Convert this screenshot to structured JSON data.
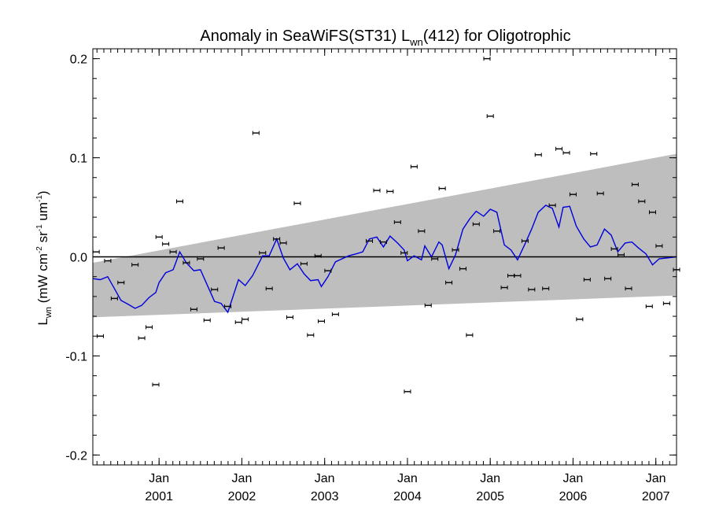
{
  "chart_data": {
    "type": "scatter",
    "title": {
      "main": "Anomaly in SeaWiFS(ST31) L",
      "subscript": "wn",
      "suffix": "(412) for Oligotrophic"
    },
    "ylabel": {
      "main": "L",
      "sub": "wn",
      "units_prefix": " (mW cm",
      "exp1": "-2",
      "mid1": " sr",
      "exp2": "-1",
      "mid2": " um",
      "exp3": "-1",
      "close": ")"
    },
    "xlabel": "",
    "xlim": [
      2000.2,
      2007.25
    ],
    "ylim": [
      -0.21,
      0.21
    ],
    "yticks": [
      {
        "value": -0.2,
        "label": "-0.2"
      },
      {
        "value": -0.1,
        "label": "-0.1"
      },
      {
        "value": 0.0,
        "label": "0.0"
      },
      {
        "value": 0.1,
        "label": "0.1"
      },
      {
        "value": 0.2,
        "label": "0.2"
      }
    ],
    "xticks": [
      {
        "value": 2001.0,
        "month": "Jan",
        "year": "2001"
      },
      {
        "value": 2002.0,
        "month": "Jan",
        "year": "2002"
      },
      {
        "value": 2003.0,
        "month": "Jan",
        "year": "2003"
      },
      {
        "value": 2004.0,
        "month": "Jan",
        "year": "2004"
      },
      {
        "value": 2005.0,
        "month": "Jan",
        "year": "2005"
      },
      {
        "value": 2006.0,
        "month": "Jan",
        "year": "2006"
      },
      {
        "value": 2007.0,
        "month": "Jan",
        "year": "2007"
      }
    ],
    "zero_line": 0.0,
    "envelope": {
      "color": "#bebebe",
      "upper": [
        [
          2000.2,
          -0.006
        ],
        [
          2007.25,
          0.104
        ]
      ],
      "lower": [
        [
          2000.2,
          -0.061
        ],
        [
          2007.25,
          -0.039
        ]
      ]
    },
    "series": [
      {
        "kind": "points",
        "color": "#000000",
        "points": [
          [
            2000.24,
            0.005
          ],
          [
            2000.29,
            -0.08
          ],
          [
            2000.38,
            -0.004
          ],
          [
            2000.46,
            -0.042
          ],
          [
            2000.54,
            -0.026
          ],
          [
            2000.71,
            -0.008
          ],
          [
            2000.79,
            -0.082
          ],
          [
            2000.88,
            -0.071
          ],
          [
            2000.96,
            -0.129
          ],
          [
            2001.0,
            0.02
          ],
          [
            2001.08,
            0.013
          ],
          [
            2001.17,
            0.005
          ],
          [
            2001.25,
            0.056
          ],
          [
            2001.33,
            -0.006
          ],
          [
            2001.42,
            -0.053
          ],
          [
            2001.5,
            -0.002
          ],
          [
            2001.58,
            -0.064
          ],
          [
            2001.67,
            -0.033
          ],
          [
            2001.75,
            0.009
          ],
          [
            2001.83,
            -0.05
          ],
          [
            2001.96,
            -0.066
          ],
          [
            2002.04,
            -0.063
          ],
          [
            2002.17,
            0.125
          ],
          [
            2002.25,
            0.004
          ],
          [
            2002.33,
            -0.032
          ],
          [
            2002.42,
            0.018
          ],
          [
            2002.5,
            0.014
          ],
          [
            2002.58,
            -0.061
          ],
          [
            2002.67,
            0.054
          ],
          [
            2002.75,
            -0.007
          ],
          [
            2002.83,
            -0.079
          ],
          [
            2002.92,
            0.001
          ],
          [
            2002.96,
            -0.065
          ],
          [
            2003.04,
            -0.014
          ],
          [
            2003.13,
            -0.058
          ],
          [
            2003.54,
            0.016
          ],
          [
            2003.63,
            0.067
          ],
          [
            2003.71,
            0.015
          ],
          [
            2003.79,
            0.066
          ],
          [
            2003.88,
            0.035
          ],
          [
            2003.96,
            0.004
          ],
          [
            2004.0,
            -0.136
          ],
          [
            2004.08,
            0.091
          ],
          [
            2004.17,
            0.026
          ],
          [
            2004.25,
            -0.049
          ],
          [
            2004.33,
            -0.002
          ],
          [
            2004.42,
            0.069
          ],
          [
            2004.5,
            -0.026
          ],
          [
            2004.58,
            0.007
          ],
          [
            2004.67,
            -0.012
          ],
          [
            2004.75,
            -0.079
          ],
          [
            2004.83,
            0.033
          ],
          [
            2004.96,
            0.2
          ],
          [
            2005.0,
            0.142
          ],
          [
            2005.08,
            0.026
          ],
          [
            2005.17,
            -0.031
          ],
          [
            2005.25,
            -0.019
          ],
          [
            2005.33,
            -0.019
          ],
          [
            2005.42,
            0.016
          ],
          [
            2005.5,
            -0.033
          ],
          [
            2005.58,
            0.103
          ],
          [
            2005.67,
            -0.032
          ],
          [
            2005.75,
            0.052
          ],
          [
            2005.83,
            0.109
          ],
          [
            2005.92,
            0.105
          ],
          [
            2006.0,
            0.063
          ],
          [
            2006.08,
            -0.063
          ],
          [
            2006.17,
            -0.023
          ],
          [
            2006.25,
            0.104
          ],
          [
            2006.33,
            0.064
          ],
          [
            2006.42,
            -0.022
          ],
          [
            2006.5,
            0.008
          ],
          [
            2006.58,
            0.002
          ],
          [
            2006.67,
            -0.032
          ],
          [
            2006.75,
            0.073
          ],
          [
            2006.83,
            0.056
          ],
          [
            2006.92,
            -0.05
          ],
          [
            2006.96,
            0.045
          ],
          [
            2007.04,
            0.011
          ],
          [
            2007.13,
            -0.047
          ],
          [
            2007.25,
            -0.013
          ]
        ]
      },
      {
        "kind": "line",
        "color": "#0000dd",
        "points": [
          [
            2000.2,
            -0.022
          ],
          [
            2000.29,
            -0.023
          ],
          [
            2000.38,
            -0.02
          ],
          [
            2000.46,
            -0.032
          ],
          [
            2000.54,
            -0.044
          ],
          [
            2000.63,
            -0.048
          ],
          [
            2000.71,
            -0.052
          ],
          [
            2000.79,
            -0.049
          ],
          [
            2000.88,
            -0.041
          ],
          [
            2000.96,
            -0.036
          ],
          [
            2001.0,
            -0.026
          ],
          [
            2001.08,
            -0.016
          ],
          [
            2001.17,
            -0.013
          ],
          [
            2001.25,
            0.005
          ],
          [
            2001.33,
            -0.006
          ],
          [
            2001.42,
            -0.014
          ],
          [
            2001.5,
            -0.013
          ],
          [
            2001.58,
            -0.028
          ],
          [
            2001.67,
            -0.045
          ],
          [
            2001.75,
            -0.047
          ],
          [
            2001.83,
            -0.056
          ],
          [
            2001.96,
            -0.023
          ],
          [
            2002.04,
            -0.029
          ],
          [
            2002.13,
            -0.019
          ],
          [
            2002.25,
            0.001
          ],
          [
            2002.33,
            0.001
          ],
          [
            2002.42,
            0.018
          ],
          [
            2002.5,
            -0.001
          ],
          [
            2002.58,
            -0.013
          ],
          [
            2002.67,
            -0.007
          ],
          [
            2002.75,
            -0.017
          ],
          [
            2002.83,
            -0.024
          ],
          [
            2002.92,
            -0.023
          ],
          [
            2002.96,
            -0.03
          ],
          [
            2003.04,
            -0.02
          ],
          [
            2003.13,
            -0.005
          ],
          [
            2003.21,
            -0.002
          ],
          [
            2003.29,
            0.001
          ],
          [
            2003.38,
            0.003
          ],
          [
            2003.46,
            0.005
          ],
          [
            2003.54,
            0.018
          ],
          [
            2003.63,
            0.02
          ],
          [
            2003.71,
            0.01
          ],
          [
            2003.79,
            0.021
          ],
          [
            2003.88,
            0.014
          ],
          [
            2003.96,
            0.007
          ],
          [
            2004.0,
            -0.004
          ],
          [
            2004.08,
            0.001
          ],
          [
            2004.17,
            -0.003
          ],
          [
            2004.21,
            0.011
          ],
          [
            2004.29,
            0.0
          ],
          [
            2004.38,
            0.015
          ],
          [
            2004.42,
            0.012
          ],
          [
            2004.5,
            -0.012
          ],
          [
            2004.58,
            0.002
          ],
          [
            2004.67,
            0.028
          ],
          [
            2004.75,
            0.038
          ],
          [
            2004.83,
            0.046
          ],
          [
            2004.92,
            0.041
          ],
          [
            2005.0,
            0.048
          ],
          [
            2005.08,
            0.045
          ],
          [
            2005.17,
            0.012
          ],
          [
            2005.25,
            0.007
          ],
          [
            2005.33,
            -0.003
          ],
          [
            2005.42,
            0.013
          ],
          [
            2005.5,
            0.028
          ],
          [
            2005.58,
            0.045
          ],
          [
            2005.67,
            0.052
          ],
          [
            2005.75,
            0.049
          ],
          [
            2005.83,
            0.03
          ],
          [
            2005.88,
            0.05
          ],
          [
            2005.96,
            0.051
          ],
          [
            2006.04,
            0.031
          ],
          [
            2006.13,
            0.018
          ],
          [
            2006.21,
            0.01
          ],
          [
            2006.29,
            0.012
          ],
          [
            2006.38,
            0.028
          ],
          [
            2006.46,
            0.022
          ],
          [
            2006.54,
            0.005
          ],
          [
            2006.63,
            0.014
          ],
          [
            2006.71,
            0.015
          ],
          [
            2006.79,
            0.009
          ],
          [
            2006.88,
            0.003
          ],
          [
            2006.96,
            -0.008
          ],
          [
            2007.04,
            -0.002
          ],
          [
            2007.25,
            0.0
          ]
        ]
      }
    ]
  }
}
